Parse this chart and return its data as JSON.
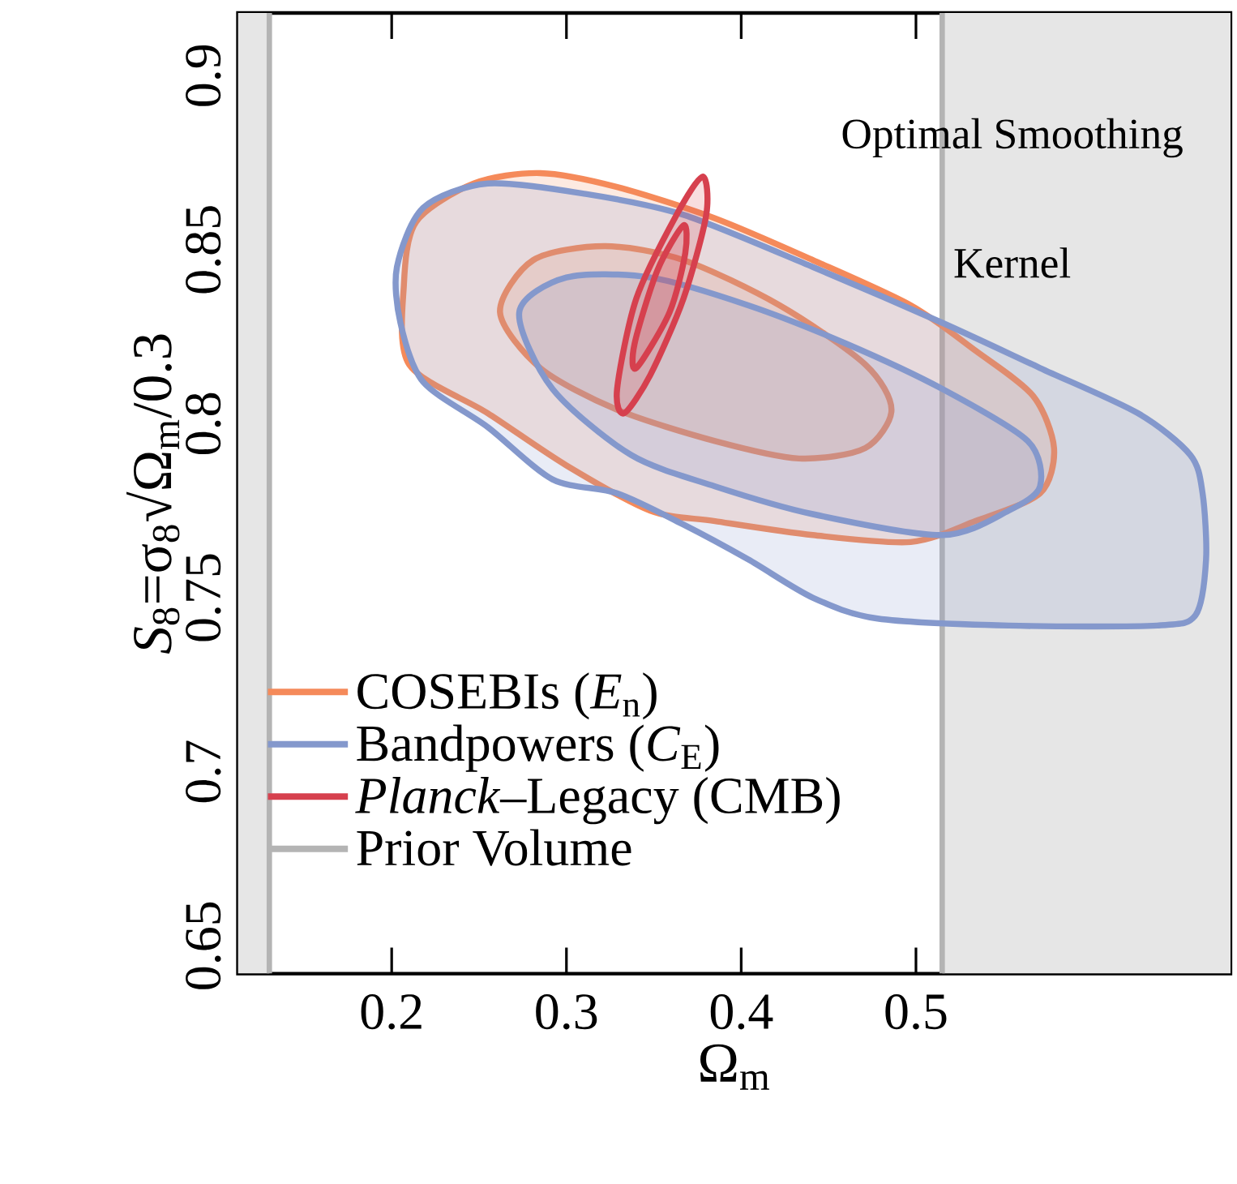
{
  "chart_data": {
    "type": "area",
    "xlabel": "Ω$_{m}$",
    "ylabel": "*S*$_{8}$=σ$_{8}$√Ω$_{m}$/0.3",
    "xlim": [
      0.112,
      0.68
    ],
    "ylim": [
      0.642,
      0.918
    ],
    "xticks": [
      0.2,
      0.3,
      0.4,
      0.5
    ],
    "yticks": [
      0.65,
      0.7,
      0.75,
      0.8,
      0.85,
      0.9
    ],
    "legend": "bottom left",
    "line_style": "solid",
    "grid": false,
    "annotations": [
      "Optimal Smoothing",
      "Kernel"
    ],
    "bands": [
      {
        "axis": "x",
        "from": 0.112,
        "to": 0.13,
        "color": "#e6e6e6"
      },
      {
        "axis": "x",
        "from": 0.515,
        "to": 0.68,
        "color": "#e6e6e6"
      }
    ],
    "ref_lines": [
      {
        "axis": "x",
        "value": 0.13,
        "label": "Prior Volume",
        "color": "#b4b4b4"
      },
      {
        "axis": "x",
        "value": 0.515,
        "color": "#b4b4b4"
      }
    ],
    "series": [
      {
        "name": "COSEBIs (*E*$_{n}$)",
        "color": "#f58a5a",
        "x": [
          0.207,
          0.214,
          0.247,
          0.285,
          0.329,
          0.385,
          0.441,
          0.497,
          0.534,
          0.567,
          0.579,
          0.571,
          0.534,
          0.497,
          0.441,
          0.385,
          0.348,
          0.3,
          0.255,
          0.21
        ],
        "values": [
          0.84,
          0.858,
          0.869,
          0.872,
          0.868,
          0.859,
          0.847,
          0.834,
          0.821,
          0.808,
          0.793,
          0.78,
          0.772,
          0.766,
          0.768,
          0.772,
          0.775,
          0.788,
          0.803,
          0.817
        ]
      },
      {
        "color": "#f58a5a",
        "x": [
          0.262,
          0.281,
          0.322,
          0.367,
          0.422,
          0.471,
          0.486,
          0.471,
          0.433,
          0.385,
          0.329,
          0.285
        ],
        "values": [
          0.832,
          0.847,
          0.851,
          0.847,
          0.834,
          0.817,
          0.804,
          0.793,
          0.79,
          0.795,
          0.804,
          0.816
        ]
      },
      {
        "name": "Bandpowers (*C*$_{E}$)",
        "color": "#8498cc",
        "x": [
          0.203,
          0.218,
          0.255,
          0.311,
          0.367,
          0.441,
          0.515,
          0.571,
          0.627,
          0.657,
          0.664,
          0.666,
          0.66,
          0.638,
          0.553,
          0.478,
          0.441,
          0.404,
          0.367,
          0.329,
          0.292,
          0.255,
          0.218,
          0.205
        ],
        "values": [
          0.845,
          0.862,
          0.869,
          0.866,
          0.86,
          0.845,
          0.829,
          0.816,
          0.803,
          0.791,
          0.78,
          0.761,
          0.745,
          0.742,
          0.742,
          0.744,
          0.75,
          0.761,
          0.771,
          0.78,
          0.784,
          0.799,
          0.812,
          0.829
        ]
      },
      {
        "color": "#8498cc",
        "x": [
          0.273,
          0.3,
          0.348,
          0.404,
          0.46,
          0.515,
          0.564,
          0.571,
          0.553,
          0.515,
          0.441,
          0.385,
          0.337,
          0.292
        ],
        "values": [
          0.832,
          0.842,
          0.842,
          0.834,
          0.823,
          0.81,
          0.795,
          0.782,
          0.775,
          0.768,
          0.774,
          0.782,
          0.791,
          0.81
        ]
      },
      {
        "name": "*Planck*–Legacy (CMB)",
        "color": "#d6404e",
        "x": [
          0.378,
          0.38,
          0.367,
          0.348,
          0.333,
          0.329,
          0.34,
          0.363
        ],
        "values": [
          0.871,
          0.86,
          0.836,
          0.814,
          0.803,
          0.81,
          0.836,
          0.86
        ]
      },
      {
        "color": "#d6404e",
        "x": [
          0.367,
          0.368,
          0.359,
          0.34,
          0.339,
          0.352
        ],
        "values": [
          0.857,
          0.849,
          0.832,
          0.816,
          0.823,
          0.844
        ]
      }
    ]
  }
}
